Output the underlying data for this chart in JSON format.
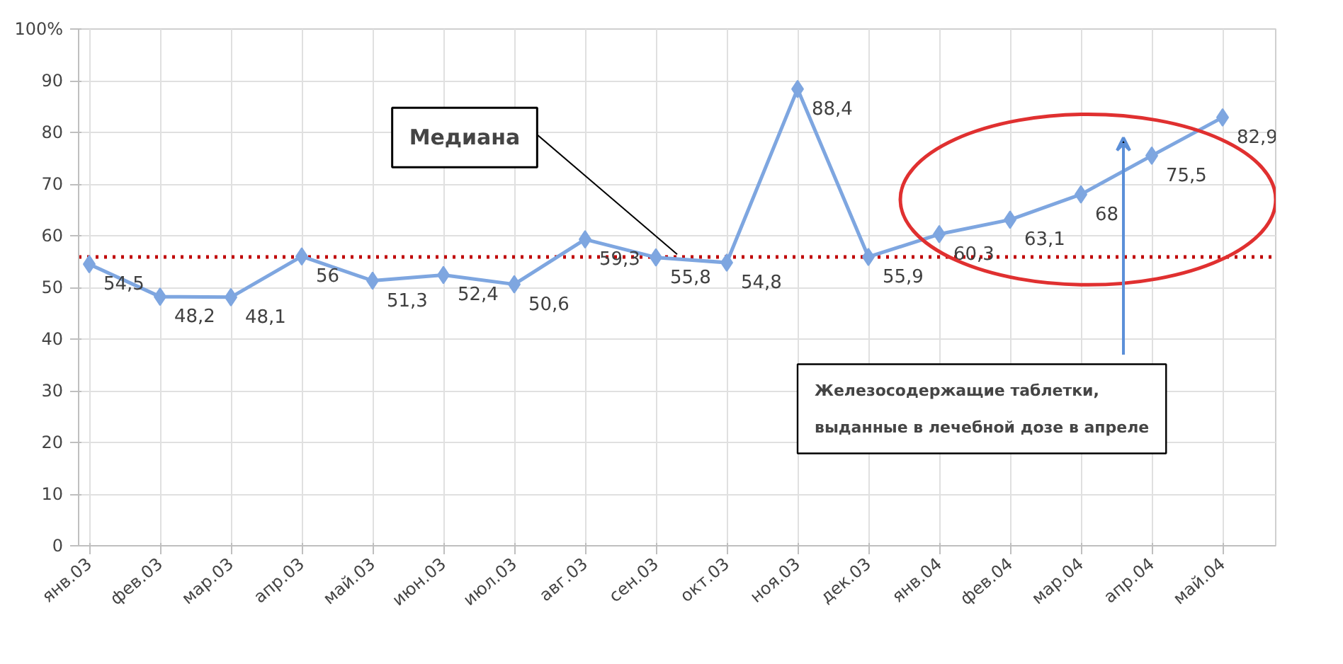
{
  "chart_data": {
    "type": "line",
    "categories": [
      "янв.03",
      "фев.03",
      "мар.03",
      "апр.03",
      "май.03",
      "июн.03",
      "июл.03",
      "авг.03",
      "сен.03",
      "окт.03",
      "ноя.03",
      "дек.03",
      "янв.04",
      "фев.04",
      "мар.04",
      "апр.04",
      "май.04"
    ],
    "series": [
      {
        "color": "#7ea6e0",
        "values": [
          54.5,
          48.2,
          48.1,
          56,
          51.3,
          52.4,
          50.6,
          59.3,
          55.8,
          54.8,
          88.4,
          55.9,
          60.3,
          63.1,
          68,
          75.5,
          82.9
        ],
        "value_labels": [
          "54,5",
          "48,2",
          "48,1",
          "56",
          "51,3",
          "52,4",
          "50,6",
          "59,3",
          "55,8",
          "54,8",
          "88,4",
          "55,9",
          "60,3",
          "63,1",
          "68",
          "75,5",
          "82,9"
        ]
      }
    ],
    "ylim": [
      0,
      100
    ],
    "yticks": [
      0,
      10,
      20,
      30,
      40,
      50,
      60,
      70,
      80,
      90,
      {
        "value": 100,
        "label": "100%"
      }
    ],
    "grid": true,
    "marker": "diamond",
    "line_style": "solid",
    "ref_lines": [
      {
        "axis": "y",
        "value": 55.9,
        "label": "Медиана",
        "color": "#c00000",
        "line_style": "dotted"
      }
    ],
    "annotations": [
      "Железосодержащие таблетки, выданные в лечебной дозе в апреле"
    ]
  }
}
